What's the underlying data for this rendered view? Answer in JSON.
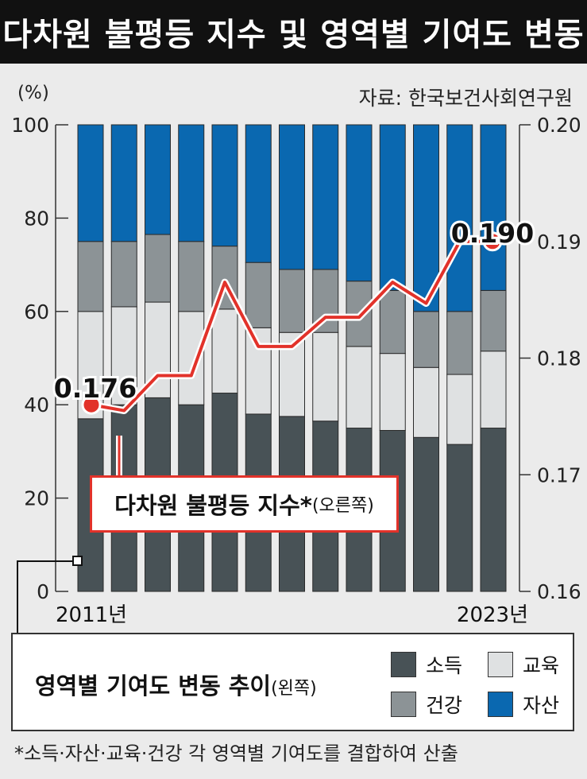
{
  "title": "다차원 불평등 지수 및 영역별 기여도 변동",
  "source": "자료: 한국보건사회연구원",
  "unit": "(%)",
  "line_label": {
    "main": "다차원 불평등 지수*",
    "sub": "(오른쪽)"
  },
  "legend": {
    "title": "영역별 기여도 변동 추이",
    "title_sub": "(왼쪽)",
    "items": [
      "소득",
      "교육",
      "건강",
      "자산"
    ]
  },
  "footnote": "*소득·자산·교육·건강 각 영역별 기여도를 결합하여 산출",
  "colors": {
    "income": "#485256",
    "education": "#dfe1e2",
    "health": "#8c9396",
    "assets": "#0a68b0",
    "line": "#e2322a",
    "background": "#ebebeb"
  },
  "chart_data": {
    "type": "bar",
    "stacked": true,
    "categories": [
      "2011년",
      "",
      "",
      "",
      "",
      "",
      "",
      "",
      "",
      "",
      "",
      "",
      "2023년"
    ],
    "series": [
      {
        "name": "소득",
        "values": [
          37,
          40,
          41.5,
          40,
          42.5,
          38,
          37.5,
          36.5,
          35,
          34.5,
          33,
          31.5,
          35
        ]
      },
      {
        "name": "교육",
        "values": [
          23,
          21,
          20.5,
          20,
          18,
          18.5,
          18,
          19,
          17.5,
          16.5,
          15,
          15,
          16.5
        ]
      },
      {
        "name": "건강",
        "values": [
          15,
          14,
          14.5,
          15,
          13.5,
          14,
          13.5,
          13.5,
          14,
          13.5,
          12,
          13.5,
          13
        ]
      },
      {
        "name": "자산",
        "values": [
          25,
          25,
          23.5,
          25,
          26,
          29.5,
          31,
          31,
          33.5,
          35.5,
          40,
          40,
          35.5
        ]
      }
    ],
    "line": {
      "values": [
        0.176,
        0.1755,
        0.1785,
        0.1785,
        0.1865,
        0.181,
        0.181,
        0.1835,
        0.1835,
        0.1865,
        0.1847,
        0.19,
        0.19
      ],
      "labels": {
        "first": "0.176",
        "last": "0.190"
      }
    },
    "y_left": {
      "ylim": [
        0,
        100
      ],
      "ticks": [
        "0",
        "20",
        "40",
        "60",
        "80",
        "100"
      ]
    },
    "y_right": {
      "ylim": [
        0.16,
        0.2
      ],
      "ticks": [
        "0.16",
        "0.17",
        "0.18",
        "0.19",
        "0.20"
      ]
    }
  }
}
